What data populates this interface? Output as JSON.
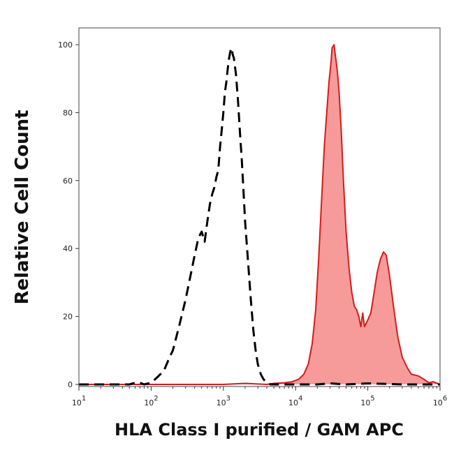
{
  "chart_data": {
    "type": "area",
    "xlabel": "HLA Class I purified / GAM APC",
    "ylabel": "Relative Cell Count",
    "x_scale": "log",
    "xlim": [
      10,
      1000000
    ],
    "ylim": [
      0,
      105
    ],
    "x_ticks": [
      {
        "value": 10,
        "base": "10",
        "exp": "1"
      },
      {
        "value": 100,
        "base": "10",
        "exp": "2"
      },
      {
        "value": 1000,
        "base": "10",
        "exp": "3"
      },
      {
        "value": 10000,
        "base": "10",
        "exp": "4"
      },
      {
        "value": 100000,
        "base": "10",
        "exp": "5"
      },
      {
        "value": 1000000,
        "base": "10",
        "exp": "6"
      }
    ],
    "y_ticks": [
      "0",
      "20",
      "40",
      "60",
      "80",
      "100"
    ],
    "grid": false,
    "legend": "none",
    "colors": {
      "stained_line": "#d41c1c",
      "stained_fill": "#f79a9a",
      "control_line": "#000000"
    },
    "series": [
      {
        "style": "dashed-line",
        "points": [
          [
            10,
            0
          ],
          [
            30,
            0
          ],
          [
            50,
            0
          ],
          [
            60,
            0.5
          ],
          [
            70,
            0.5
          ],
          [
            80,
            0
          ],
          [
            100,
            0.5
          ],
          [
            120,
            2
          ],
          [
            150,
            4
          ],
          [
            180,
            8
          ],
          [
            200,
            10
          ],
          [
            250,
            18
          ],
          [
            300,
            25
          ],
          [
            350,
            32
          ],
          [
            400,
            38
          ],
          [
            450,
            43
          ],
          [
            500,
            45
          ],
          [
            550,
            42
          ],
          [
            600,
            48
          ],
          [
            650,
            53
          ],
          [
            700,
            56
          ],
          [
            750,
            58
          ],
          [
            800,
            61
          ],
          [
            850,
            63
          ],
          [
            900,
            70
          ],
          [
            950,
            75
          ],
          [
            1000,
            80
          ],
          [
            1050,
            86
          ],
          [
            1100,
            89
          ],
          [
            1150,
            93
          ],
          [
            1200,
            96
          ],
          [
            1250,
            98
          ],
          [
            1300,
            99
          ],
          [
            1350,
            97
          ],
          [
            1400,
            96
          ],
          [
            1500,
            91
          ],
          [
            1600,
            83
          ],
          [
            1700,
            74
          ],
          [
            1800,
            66
          ],
          [
            1900,
            57
          ],
          [
            2000,
            48
          ],
          [
            2200,
            36
          ],
          [
            2400,
            25
          ],
          [
            2600,
            16
          ],
          [
            2800,
            10
          ],
          [
            3000,
            6
          ],
          [
            3300,
            3
          ],
          [
            3600,
            1.5
          ],
          [
            4000,
            0.5
          ],
          [
            4500,
            0
          ],
          [
            20000,
            0
          ],
          [
            30000,
            0.3
          ],
          [
            50000,
            0
          ],
          [
            100000,
            0.3
          ],
          [
            300000,
            0
          ],
          [
            1000000,
            0
          ]
        ]
      },
      {
        "style": "filled",
        "points": [
          [
            10,
            0
          ],
          [
            1000,
            0
          ],
          [
            2000,
            0.3
          ],
          [
            4000,
            0
          ],
          [
            5000,
            0.3
          ],
          [
            7000,
            0.5
          ],
          [
            9000,
            0.8
          ],
          [
            11000,
            1.5
          ],
          [
            13000,
            3
          ],
          [
            15000,
            6
          ],
          [
            17000,
            12
          ],
          [
            19000,
            22
          ],
          [
            21000,
            38
          ],
          [
            23000,
            55
          ],
          [
            25000,
            70
          ],
          [
            27000,
            80
          ],
          [
            29000,
            89
          ],
          [
            31000,
            95
          ],
          [
            32000,
            99
          ],
          [
            34000,
            100
          ],
          [
            36000,
            96
          ],
          [
            38000,
            92
          ],
          [
            40000,
            86
          ],
          [
            43000,
            74
          ],
          [
            46000,
            60
          ],
          [
            50000,
            45
          ],
          [
            55000,
            34
          ],
          [
            60000,
            27
          ],
          [
            65000,
            23
          ],
          [
            70000,
            22
          ],
          [
            75000,
            20
          ],
          [
            80000,
            17
          ],
          [
            85000,
            21
          ],
          [
            90000,
            17
          ],
          [
            100000,
            19
          ],
          [
            110000,
            21
          ],
          [
            120000,
            26
          ],
          [
            135000,
            33
          ],
          [
            150000,
            37
          ],
          [
            165000,
            39
          ],
          [
            180000,
            38
          ],
          [
            200000,
            32
          ],
          [
            230000,
            22
          ],
          [
            260000,
            14
          ],
          [
            300000,
            8
          ],
          [
            350000,
            5
          ],
          [
            400000,
            3
          ],
          [
            500000,
            2.5
          ],
          [
            600000,
            1.5
          ],
          [
            700000,
            0.5
          ],
          [
            800000,
            0.8
          ],
          [
            1000000,
            0
          ]
        ]
      }
    ]
  }
}
